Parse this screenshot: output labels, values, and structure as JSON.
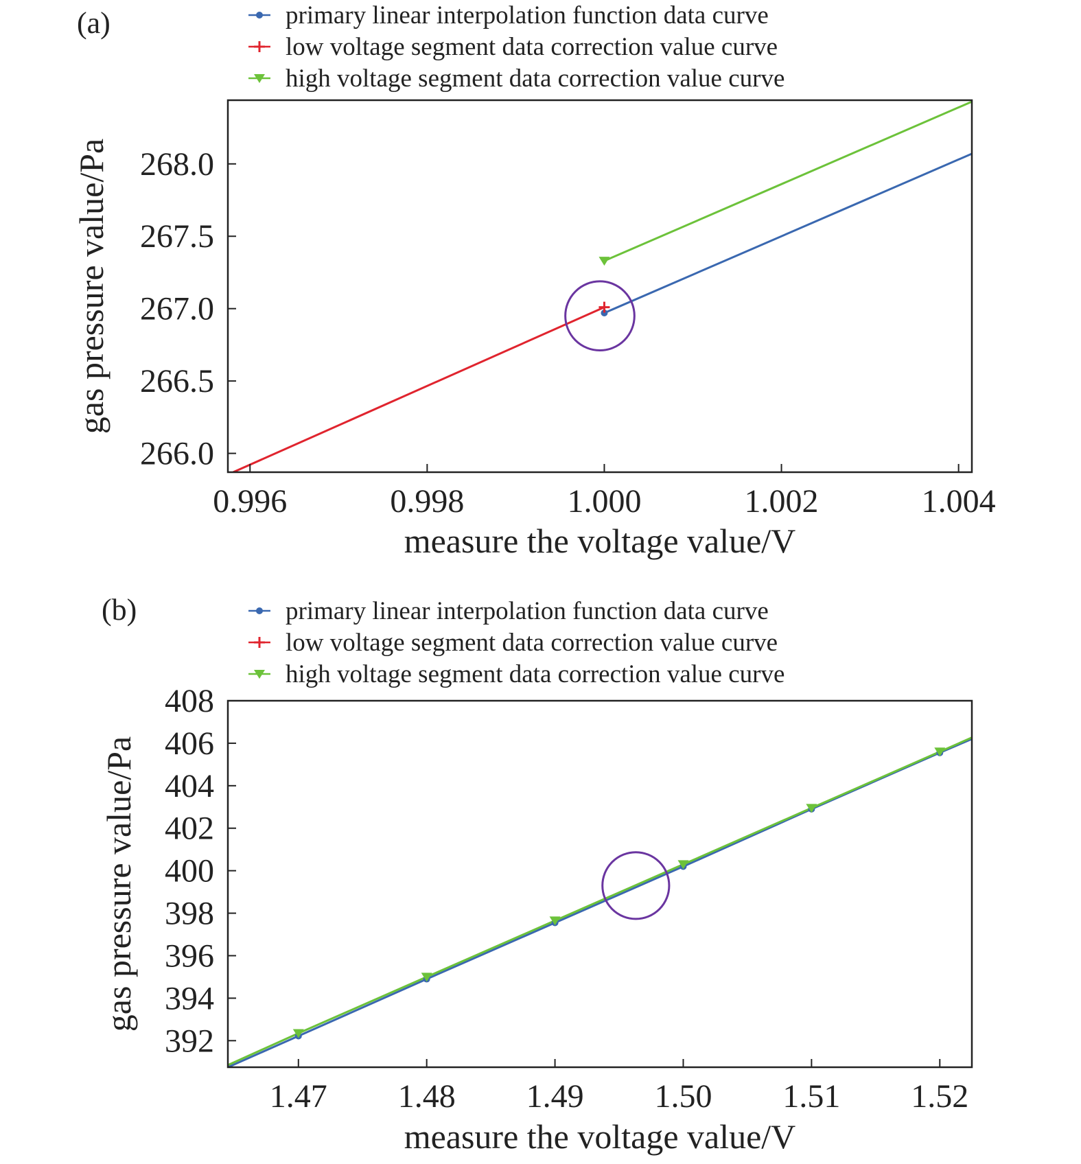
{
  "chart_data": [
    {
      "panel_label": "(a)",
      "type": "line",
      "xlabel": "measure the voltage value/V",
      "ylabel": "gas pressure value/Pa",
      "xlim": [
        0.99575,
        1.00415
      ],
      "ylim": [
        265.87,
        268.44
      ],
      "x_ticks": [
        0.996,
        0.998,
        1.0,
        1.002,
        1.004
      ],
      "x_tick_labels": [
        "0.996",
        "0.998",
        "1.000",
        "1.002",
        "1.004"
      ],
      "y_ticks": [
        266.0,
        266.5,
        267.0,
        267.5,
        268.0
      ],
      "y_tick_labels": [
        "266.0",
        "266.5",
        "267.0",
        "267.5",
        "268.0"
      ],
      "grid": false,
      "legend_position": "top-center",
      "series": [
        {
          "name": "primary linear interpolation function data curve",
          "color": "#3a68b0",
          "marker": "dot",
          "points": [
            [
              1.0,
              266.97
            ],
            [
              1.00415,
              268.07
            ]
          ]
        },
        {
          "name": "low voltage segment data correction value curve",
          "color": "#e0242e",
          "marker": "plus",
          "points": [
            [
              0.99581,
              265.87
            ],
            [
              1.0,
              267.01
            ]
          ]
        },
        {
          "name": "high voltage segment data correction value curve",
          "color": "#6cc23a",
          "marker": "triangle-down",
          "points": [
            [
              1.0,
              267.33
            ],
            [
              1.00415,
              268.43
            ]
          ]
        }
      ],
      "markers": [
        {
          "series": 0,
          "points": [
            [
              1.0,
              266.97
            ]
          ]
        },
        {
          "series": 1,
          "points": [
            [
              1.0,
              267.01
            ]
          ]
        },
        {
          "series": 2,
          "points": [
            [
              1.0,
              267.33
            ]
          ]
        }
      ],
      "annotations": [
        {
          "type": "circle",
          "x": 0.99995,
          "y": 266.95,
          "r_x": 0.00039,
          "color": "#6a35a0"
        }
      ]
    },
    {
      "panel_label": "(b)",
      "type": "line",
      "xlabel": "measure the voltage value/V",
      "ylabel": "gas pressure value/Pa",
      "xlim": [
        1.4645,
        1.5225
      ],
      "ylim": [
        390.75,
        408.0
      ],
      "x_ticks": [
        1.47,
        1.48,
        1.49,
        1.5,
        1.51,
        1.52
      ],
      "x_tick_labels": [
        "1.47",
        "1.48",
        "1.49",
        "1.50",
        "1.51",
        "1.52"
      ],
      "y_ticks": [
        392,
        394,
        396,
        398,
        400,
        402,
        404,
        406,
        408
      ],
      "y_tick_labels": [
        "392",
        "394",
        "396",
        "398",
        "400",
        "402",
        "404",
        "406",
        "408"
      ],
      "grid": false,
      "legend_position": "top-center",
      "series": [
        {
          "name": "primary linear interpolation function data curve",
          "color": "#3a68b0",
          "marker": "dot",
          "points": [
            [
              1.4645,
              390.75
            ],
            [
              1.47,
              392.22
            ],
            [
              1.48,
              394.9
            ],
            [
              1.49,
              397.55
            ],
            [
              1.5,
              400.2
            ],
            [
              1.51,
              402.9
            ],
            [
              1.52,
              405.55
            ],
            [
              1.5225,
              406.2
            ]
          ]
        },
        {
          "name": "low voltage segment data correction value curve",
          "color": "#e0242e",
          "marker": "plus",
          "points": []
        },
        {
          "name": "high voltage segment data correction value curve",
          "color": "#6cc23a",
          "marker": "triangle-down",
          "points": [
            [
              1.4645,
              390.85
            ],
            [
              1.47,
              392.35
            ],
            [
              1.48,
              395.0
            ],
            [
              1.49,
              397.65
            ],
            [
              1.5,
              400.3
            ],
            [
              1.51,
              402.95
            ],
            [
              1.52,
              405.6
            ],
            [
              1.5225,
              406.27
            ]
          ]
        }
      ],
      "markers": [
        {
          "series": 0,
          "points": [
            [
              1.47,
              392.22
            ],
            [
              1.48,
              394.9
            ],
            [
              1.49,
              397.55
            ],
            [
              1.5,
              400.2
            ],
            [
              1.51,
              402.9
            ],
            [
              1.52,
              405.55
            ]
          ]
        },
        {
          "series": 2,
          "points": [
            [
              1.47,
              392.35
            ],
            [
              1.48,
              395.0
            ],
            [
              1.49,
              397.65
            ],
            [
              1.5,
              400.3
            ],
            [
              1.51,
              402.95
            ],
            [
              1.52,
              405.6
            ]
          ]
        }
      ],
      "annotations": [
        {
          "type": "circle",
          "x": 1.4963,
          "y": 399.3,
          "r_x": 0.0026,
          "color": "#6a35a0"
        }
      ]
    }
  ]
}
